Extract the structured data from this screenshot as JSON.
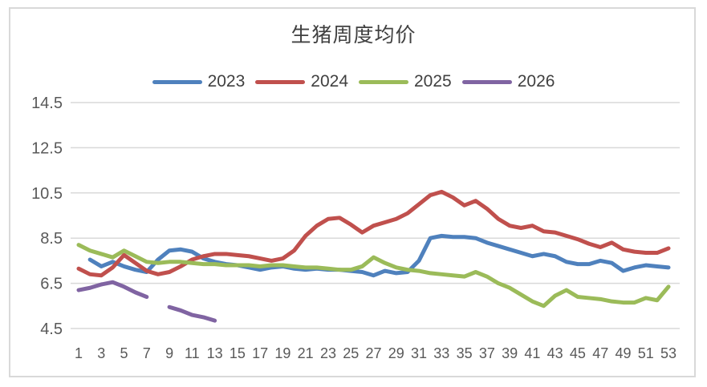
{
  "window": {
    "title": "生猪周度均价"
  },
  "colors": {
    "frame_border": "#d9d9d9",
    "gridline": "#d9d9d9",
    "axis_text": "#595959",
    "title_text": "#404040",
    "series_2023": "#4F81BD",
    "series_2024": "#C0504D",
    "series_2025": "#9BBB59",
    "series_2026": "#8064A2"
  },
  "chart_data": {
    "type": "line",
    "title": "生猪周度均价",
    "xlabel": "",
    "ylabel": "",
    "x_unit": "week",
    "xlim": [
      1,
      53
    ],
    "ylim": [
      4.5,
      14.5
    ],
    "x_ticks": [
      1,
      3,
      5,
      7,
      9,
      11,
      13,
      15,
      17,
      19,
      21,
      23,
      25,
      27,
      29,
      31,
      33,
      35,
      37,
      39,
      41,
      43,
      45,
      47,
      49,
      51,
      53
    ],
    "y_ticks": [
      14.5,
      12.5,
      10.5,
      8.5,
      6.5,
      4.5
    ],
    "grid": true,
    "legend_position": "top",
    "weeks": [
      1,
      2,
      3,
      4,
      5,
      6,
      7,
      8,
      9,
      10,
      11,
      12,
      13,
      14,
      15,
      16,
      17,
      18,
      19,
      20,
      21,
      22,
      23,
      24,
      25,
      26,
      27,
      28,
      29,
      30,
      31,
      32,
      33,
      34,
      35,
      36,
      37,
      38,
      39,
      40,
      41,
      42,
      43,
      44,
      45,
      46,
      47,
      48,
      49,
      50,
      51,
      52,
      53
    ],
    "series": [
      {
        "name": "2023",
        "color": "#4F81BD",
        "values": [
          null,
          7.55,
          7.25,
          7.45,
          7.25,
          7.1,
          7.0,
          7.55,
          7.95,
          8.0,
          7.9,
          7.6,
          7.45,
          7.35,
          7.3,
          7.2,
          7.1,
          7.2,
          7.25,
          7.15,
          7.1,
          7.15,
          7.1,
          7.1,
          7.05,
          7.0,
          6.85,
          7.05,
          6.95,
          7.0,
          7.5,
          8.5,
          8.6,
          8.55,
          8.55,
          8.5,
          8.3,
          8.15,
          8.0,
          7.85,
          7.7,
          7.8,
          7.7,
          7.45,
          7.35,
          7.35,
          7.5,
          7.4,
          7.05,
          7.2,
          7.3,
          7.25,
          7.2
        ]
      },
      {
        "name": "2024",
        "color": "#C0504D",
        "values": [
          7.15,
          6.9,
          6.85,
          7.2,
          7.75,
          7.4,
          7.05,
          6.9,
          7.0,
          7.25,
          7.55,
          7.7,
          7.8,
          7.8,
          7.75,
          7.7,
          7.6,
          7.5,
          7.6,
          7.95,
          8.6,
          9.05,
          9.35,
          9.4,
          9.1,
          8.75,
          9.05,
          9.2,
          9.35,
          9.6,
          10.0,
          10.4,
          10.55,
          10.3,
          9.95,
          10.15,
          9.8,
          9.35,
          9.05,
          8.95,
          9.05,
          8.8,
          8.75,
          8.6,
          8.45,
          8.25,
          8.1,
          8.3,
          8.0,
          7.9,
          7.85,
          7.85,
          8.05
        ]
      },
      {
        "name": "2025",
        "color": "#9BBB59",
        "values": [
          8.2,
          7.95,
          7.8,
          7.65,
          7.95,
          7.7,
          7.45,
          7.4,
          7.45,
          7.45,
          7.4,
          7.35,
          7.35,
          7.3,
          7.3,
          7.3,
          7.25,
          7.3,
          7.3,
          7.25,
          7.2,
          7.2,
          7.15,
          7.1,
          7.1,
          7.25,
          7.65,
          7.4,
          7.2,
          7.1,
          7.05,
          6.95,
          6.9,
          6.85,
          6.8,
          7.0,
          6.8,
          6.5,
          6.3,
          6.0,
          5.7,
          5.5,
          5.95,
          6.2,
          5.9,
          5.85,
          5.8,
          5.7,
          5.65,
          5.65,
          5.85,
          5.75,
          6.35
        ]
      },
      {
        "name": "2026",
        "color": "#8064A2",
        "values": [
          6.2,
          6.3,
          6.45,
          6.55,
          6.35,
          6.1,
          5.9,
          null,
          5.45,
          5.3,
          5.1,
          5.0,
          4.85
        ]
      }
    ]
  }
}
